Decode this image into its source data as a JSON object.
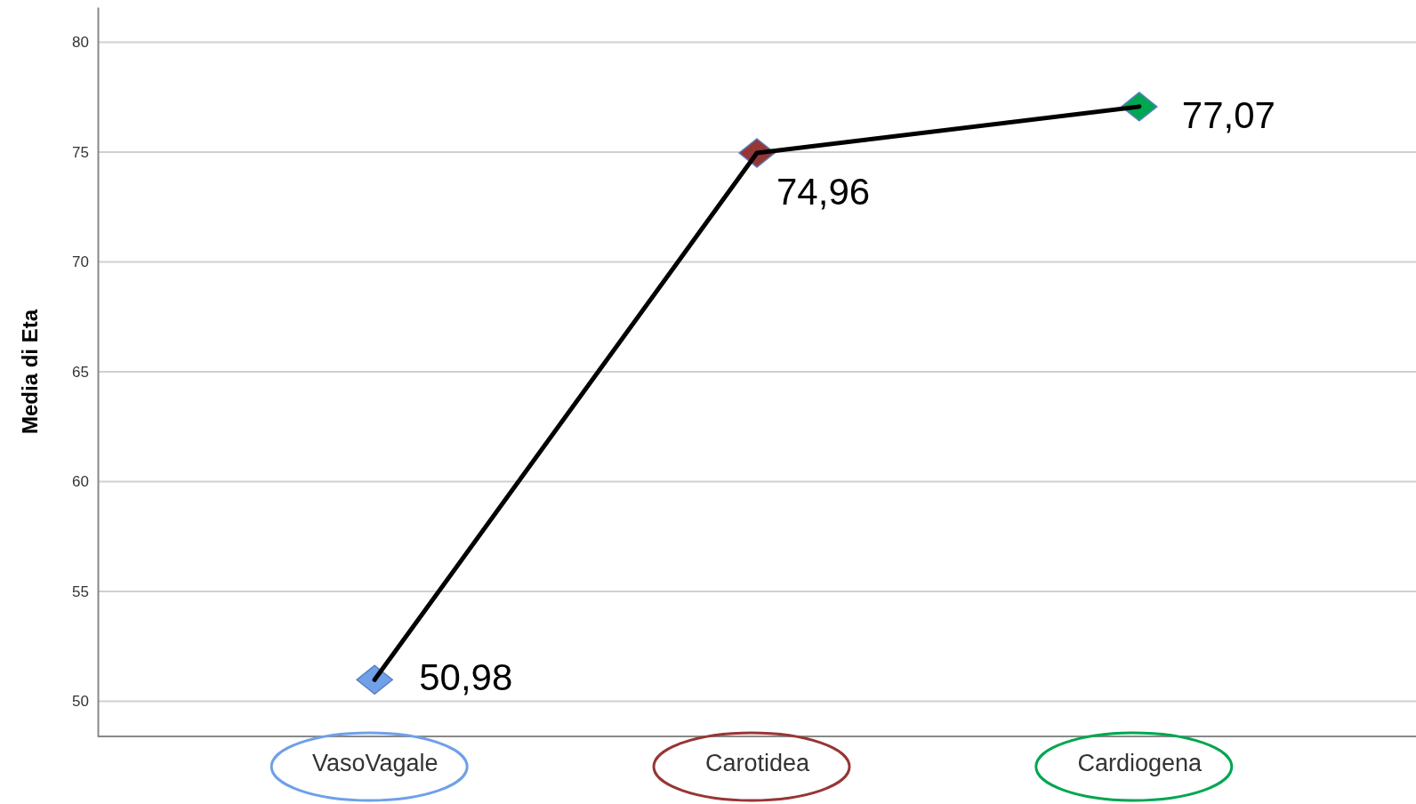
{
  "chart_data": {
    "type": "line",
    "ylabel": "Media di Eta",
    "categories": [
      "VasoVagale",
      "Carotidea",
      "Cardiogena"
    ],
    "series": [
      {
        "color": "#000000",
        "colors": [
          "#6fa0e8",
          "#953735",
          "#00a651"
        ],
        "values": [
          50.98,
          74.96,
          77.07
        ],
        "value_labels": [
          "50,98",
          "74,96",
          "77,07"
        ]
      }
    ],
    "ylim": [
      48.4,
      81.6
    ],
    "yticks": [
      50,
      55,
      60,
      65,
      70,
      75,
      80
    ],
    "grid": "y",
    "marker": "diamond",
    "line_style": "solid"
  }
}
